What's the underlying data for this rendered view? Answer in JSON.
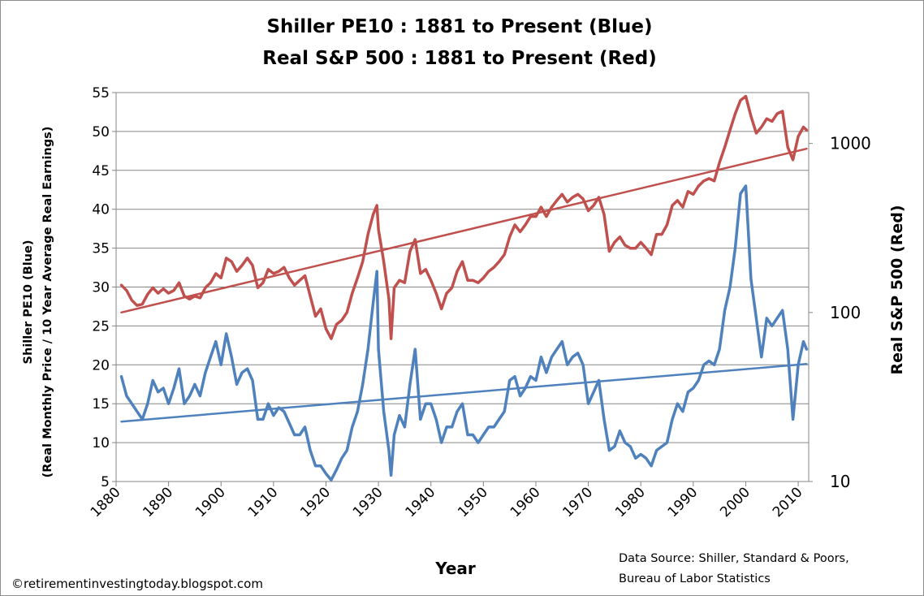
{
  "title_line1": "Shiller PE10 : 1881 to Present (Blue)",
  "title_line2": "Real S&P 500 : 1881 to Present (Red)",
  "footer": "©retirementinvestingtoday.blogspot.com",
  "source_line1": "Data Source: Shiller, Standard & Poors,",
  "source_line2": "Bureau of Labor Statistics",
  "chart_data": {
    "type": "line",
    "xlabel": "Year",
    "ylabel_line1": "Shiller PE10 (Blue)",
    "ylabel_line2": "(Real Monthly Price / 10 Year Average Real Earnings)",
    "y2label": "Real  S&P 500 (Red)",
    "xlim": [
      1880,
      2012
    ],
    "ylim": [
      5,
      55
    ],
    "y2lim": [
      10,
      2000
    ],
    "y2scale": "log",
    "x_ticks": [
      "1880",
      "1890",
      "1900",
      "1910",
      "1920",
      "1930",
      "1940",
      "1950",
      "1960",
      "1970",
      "1980",
      "1990",
      "2000",
      "2010"
    ],
    "y_ticks": [
      "5",
      "10",
      "15",
      "20",
      "25",
      "30",
      "35",
      "40",
      "45",
      "50",
      "55"
    ],
    "y2_ticks": [
      "10",
      "100",
      "1000"
    ],
    "grid": "horizontal",
    "colors": {
      "pe10": "#4f81bd",
      "sp500": "#c0504d",
      "grid": "#868686"
    },
    "series": [
      {
        "name": "Shiller PE10",
        "axis": "left",
        "color": "#4f81bd",
        "x": [
          1881,
          1882,
          1883,
          1884,
          1885,
          1886,
          1887,
          1888,
          1889,
          1890,
          1891,
          1892,
          1893,
          1894,
          1895,
          1896,
          1897,
          1898,
          1899,
          1900,
          1901,
          1902,
          1903,
          1904,
          1905,
          1906,
          1907,
          1908,
          1909,
          1910,
          1911,
          1912,
          1913,
          1914,
          1915,
          1916,
          1917,
          1918,
          1919,
          1920,
          1921,
          1922,
          1923,
          1924,
          1925,
          1926,
          1927,
          1928,
          1929,
          1929.7,
          1930,
          1931,
          1932,
          1932.4,
          1933,
          1934,
          1935,
          1936,
          1937,
          1938,
          1939,
          1940,
          1941,
          1942,
          1943,
          1944,
          1945,
          1946,
          1947,
          1948,
          1949,
          1950,
          1951,
          1952,
          1953,
          1954,
          1955,
          1956,
          1957,
          1958,
          1959,
          1960,
          1961,
          1962,
          1963,
          1964,
          1965,
          1966,
          1967,
          1968,
          1969,
          1970,
          1971,
          1972,
          1973,
          1974,
          1975,
          1976,
          1977,
          1978,
          1979,
          1980,
          1981,
          1982,
          1983,
          1984,
          1985,
          1986,
          1987,
          1988,
          1989,
          1990,
          1991,
          1992,
          1993,
          1994,
          1995,
          1996,
          1997,
          1998,
          1999,
          2000,
          2001,
          2002,
          2003,
          2004,
          2005,
          2006,
          2007,
          2008,
          2009,
          2010,
          2011,
          2011.6
        ],
        "values": [
          18.5,
          16.0,
          15.0,
          14.0,
          13.0,
          15.0,
          18.0,
          16.5,
          17.0,
          15.0,
          17.0,
          19.5,
          15.0,
          16.0,
          17.5,
          16.0,
          19.0,
          21.0,
          23.0,
          20.0,
          24.0,
          21.0,
          17.5,
          19.0,
          19.5,
          18.0,
          13.0,
          13.0,
          15.0,
          13.5,
          14.5,
          14.0,
          12.5,
          11.0,
          11.0,
          12.0,
          9.0,
          7.0,
          7.0,
          6.0,
          5.2,
          6.5,
          8.0,
          9.0,
          12.0,
          14.0,
          17.5,
          22.0,
          28.0,
          32.0,
          22.0,
          14.0,
          9.0,
          5.8,
          11.0,
          13.5,
          12.0,
          17.5,
          22.0,
          13.0,
          15.0,
          15.0,
          13.0,
          10.0,
          12.0,
          12.0,
          14.0,
          15.0,
          11.0,
          11.0,
          10.0,
          11.0,
          12.0,
          12.0,
          13.0,
          14.0,
          18.0,
          18.5,
          16.0,
          17.0,
          18.5,
          18.0,
          21.0,
          19.0,
          21.0,
          22.0,
          23.0,
          20.0,
          21.0,
          21.5,
          20.0,
          15.0,
          16.5,
          18.0,
          13.0,
          9.0,
          9.5,
          11.5,
          10.0,
          9.5,
          8.0,
          8.5,
          8.0,
          7.0,
          9.0,
          9.5,
          10.0,
          13.0,
          15.0,
          14.0,
          16.5,
          17.0,
          18.0,
          20.0,
          20.5,
          20.0,
          22.0,
          27.0,
          30.0,
          35.0,
          42.0,
          43.0,
          31.0,
          26.0,
          21.0,
          26.0,
          25.0,
          26.0,
          27.0,
          22.0,
          13.0,
          20.0,
          23.0,
          22.0
        ]
      },
      {
        "name": "Real S&P 500",
        "axis": "right",
        "color": "#c0504d",
        "x": [
          1881,
          1882,
          1883,
          1884,
          1885,
          1886,
          1887,
          1888,
          1889,
          1890,
          1891,
          1892,
          1893,
          1894,
          1895,
          1896,
          1897,
          1898,
          1899,
          1900,
          1901,
          1902,
          1903,
          1904,
          1905,
          1906,
          1907,
          1908,
          1909,
          1910,
          1911,
          1912,
          1913,
          1914,
          1915,
          1916,
          1917,
          1918,
          1919,
          1920,
          1921,
          1922,
          1923,
          1924,
          1925,
          1926,
          1927,
          1928,
          1929,
          1929.7,
          1930,
          1931,
          1932,
          1932.4,
          1933,
          1934,
          1935,
          1936,
          1937,
          1938,
          1939,
          1940,
          1941,
          1942,
          1943,
          1944,
          1945,
          1946,
          1947,
          1948,
          1949,
          1950,
          1951,
          1952,
          1953,
          1954,
          1955,
          1956,
          1957,
          1958,
          1959,
          1960,
          1961,
          1962,
          1963,
          1964,
          1965,
          1966,
          1967,
          1968,
          1969,
          1970,
          1971,
          1972,
          1973,
          1974,
          1975,
          1976,
          1977,
          1978,
          1979,
          1980,
          1981,
          1982,
          1983,
          1984,
          1985,
          1986,
          1987,
          1988,
          1989,
          1990,
          1991,
          1992,
          1993,
          1994,
          1995,
          1996,
          1997,
          1998,
          1999,
          2000,
          2001,
          2002,
          2003,
          2004,
          2005,
          2006,
          2007,
          2008,
          2009,
          2010,
          2011,
          2011.6
        ],
        "values": [
          145,
          135,
          118,
          110,
          112,
          128,
          140,
          130,
          138,
          130,
          135,
          150,
          125,
          120,
          125,
          122,
          140,
          150,
          170,
          160,
          210,
          200,
          175,
          190,
          210,
          190,
          140,
          150,
          180,
          170,
          175,
          185,
          160,
          145,
          155,
          165,
          125,
          95,
          105,
          80,
          70,
          85,
          90,
          100,
          130,
          160,
          200,
          290,
          380,
          430,
          310,
          200,
          120,
          70,
          140,
          155,
          150,
          230,
          270,
          170,
          180,
          155,
          130,
          105,
          130,
          140,
          175,
          200,
          155,
          155,
          150,
          160,
          175,
          185,
          200,
          220,
          280,
          330,
          300,
          330,
          370,
          370,
          420,
          370,
          420,
          460,
          500,
          450,
          480,
          500,
          470,
          400,
          430,
          480,
          380,
          230,
          260,
          280,
          250,
          240,
          240,
          260,
          240,
          220,
          290,
          290,
          330,
          430,
          460,
          420,
          520,
          500,
          560,
          600,
          620,
          600,
          770,
          950,
          1200,
          1500,
          1800,
          1900,
          1450,
          1150,
          1250,
          1400,
          1350,
          1500,
          1550,
          950,
          800,
          1100,
          1250,
          1200
        ]
      },
      {
        "name": "PE10 trend",
        "axis": "left",
        "color": "#4f81bd",
        "x": [
          1881,
          2011.6
        ],
        "values": [
          12.7,
          20.1
        ]
      },
      {
        "name": "S&P 500 trend",
        "axis": "right",
        "color": "#c0504d",
        "x": [
          1881,
          2011.6
        ],
        "values": [
          100,
          930
        ]
      }
    ]
  }
}
